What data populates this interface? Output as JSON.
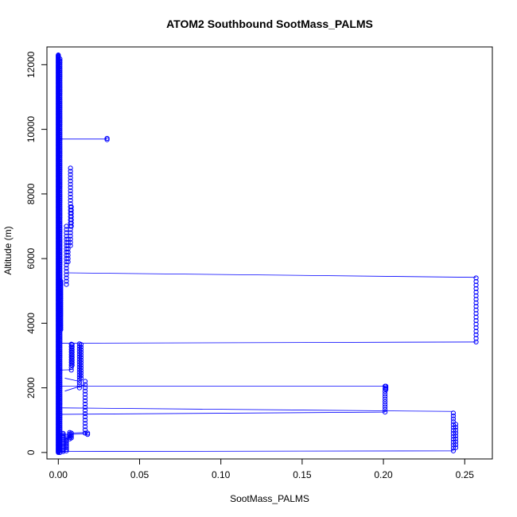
{
  "chart_data": {
    "type": "scatter",
    "title": "ATOM2 Southbound SootMass_PALMS",
    "xlabel": "SootMass_PALMS",
    "ylabel": "Altitude (m)",
    "xlim": [
      -0.007,
      0.267
    ],
    "ylim": [
      -200,
      12550
    ],
    "x_ticks": [
      0.0,
      0.05,
      0.1,
      0.15,
      0.2,
      0.25
    ],
    "x_tick_labels": [
      "0.00",
      "0.05",
      "0.10",
      "0.15",
      "0.20",
      "0.25"
    ],
    "y_ticks": [
      0,
      2000,
      4000,
      6000,
      8000,
      10000,
      12000
    ],
    "y_tick_labels": [
      "0",
      "2000",
      "4000",
      "6000",
      "8000",
      "10000",
      "12000"
    ],
    "grid": false,
    "legend": "none",
    "series_color": "#0000ff",
    "marker": "open-circle",
    "point_groups": [
      {
        "x": 0.0,
        "y_from": 0,
        "y_to": 12300,
        "y_step": 20
      },
      {
        "x": 0.001,
        "y_from": 0,
        "y_to": 12200,
        "y_step": 60
      },
      {
        "x": 0.0015,
        "y_from": 3800,
        "y_to": 5300,
        "y_step": 60
      },
      {
        "x": 0.003,
        "y_from": 30,
        "y_to": 600,
        "y_step": 40
      },
      {
        "x": 0.005,
        "y_from": 50,
        "y_to": 500,
        "y_step": 50
      },
      {
        "x": 0.007,
        "y_from": 420,
        "y_to": 620,
        "y_step": 50
      },
      {
        "x": 0.008,
        "y_from": 450,
        "y_to": 600,
        "y_step": 50
      },
      {
        "x": 0.005,
        "y_from": 5200,
        "y_to": 7000,
        "y_step": 100
      },
      {
        "x": 0.006,
        "y_from": 5900,
        "y_to": 6600,
        "y_step": 100
      },
      {
        "x": 0.0075,
        "y_from": 6400,
        "y_to": 8800,
        "y_step": 100
      },
      {
        "x": 0.008,
        "y_from": 7000,
        "y_to": 7600,
        "y_step": 100
      },
      {
        "x": 0.008,
        "y_from": 2550,
        "y_to": 3400,
        "y_step": 80
      },
      {
        "x": 0.0085,
        "y_from": 2700,
        "y_to": 3400,
        "y_step": 80
      },
      {
        "x": 0.013,
        "y_from": 2000,
        "y_to": 3400,
        "y_step": 80
      },
      {
        "x": 0.014,
        "y_from": 2300,
        "y_to": 3350,
        "y_step": 80
      },
      {
        "x": 0.0165,
        "y_from": 600,
        "y_to": 2200,
        "y_step": 100
      },
      {
        "x": 0.018,
        "y_from": 560,
        "y_to": 600,
        "y_step": 40
      },
      {
        "x": 0.03,
        "y_from": 9680,
        "y_to": 9720,
        "y_step": 40
      },
      {
        "x": 0.201,
        "y_from": 1250,
        "y_to": 2050,
        "y_step": 80
      },
      {
        "x": 0.2015,
        "y_from": 1950,
        "y_to": 2050,
        "y_step": 50
      },
      {
        "x": 0.243,
        "y_from": 50,
        "y_to": 1270,
        "y_step": 90
      },
      {
        "x": 0.2445,
        "y_from": 150,
        "y_to": 900,
        "y_step": 90
      },
      {
        "x": 0.257,
        "y_from": 3420,
        "y_to": 5420,
        "y_step": 110
      }
    ],
    "connecting_lines": [
      {
        "x1": 0.001,
        "y1": 9700,
        "x2": 0.03,
        "y2": 9700
      },
      {
        "x1": 0.005,
        "y1": 5560,
        "x2": 0.257,
        "y2": 5420
      },
      {
        "x1": 0.002,
        "y1": 3380,
        "x2": 0.257,
        "y2": 3420
      },
      {
        "x1": 0.002,
        "y1": 2050,
        "x2": 0.201,
        "y2": 2050
      },
      {
        "x1": 0.002,
        "y1": 1380,
        "x2": 0.243,
        "y2": 1270
      },
      {
        "x1": 0.002,
        "y1": 1180,
        "x2": 0.201,
        "y2": 1250
      },
      {
        "x1": 0.002,
        "y1": 30,
        "x2": 0.243,
        "y2": 50
      },
      {
        "x1": 0.004,
        "y1": 2300,
        "x2": 0.013,
        "y2": 2200
      },
      {
        "x1": 0.004,
        "y1": 1900,
        "x2": 0.0165,
        "y2": 2100
      },
      {
        "x1": 0.0,
        "y1": 550,
        "x2": 0.018,
        "y2": 580
      },
      {
        "x1": 0.008,
        "y1": 600,
        "x2": 0.0165,
        "y2": 620
      },
      {
        "x1": 0.001,
        "y1": 2550,
        "x2": 0.008,
        "y2": 2560
      }
    ]
  }
}
